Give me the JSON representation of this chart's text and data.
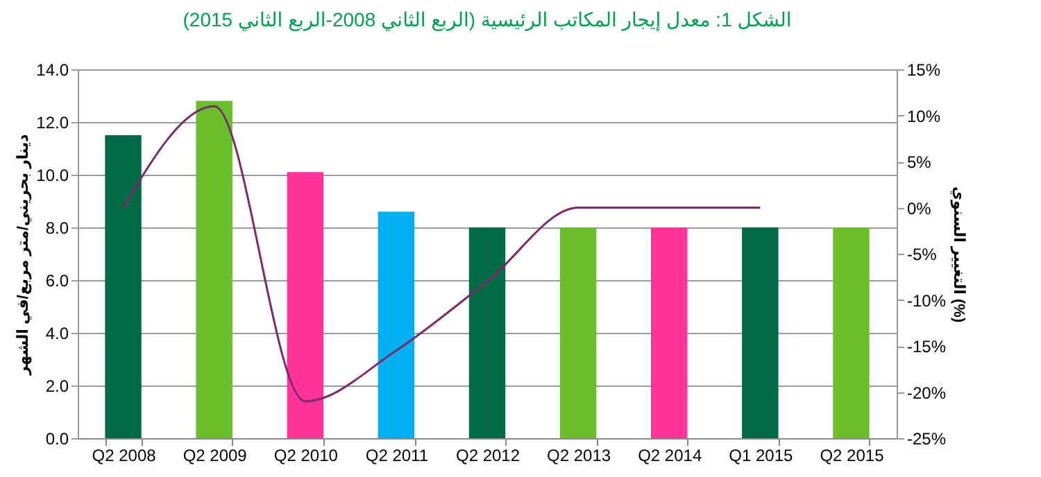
{
  "chart_data": {
    "type": "bar",
    "title": "الشكل 1: معدل إيجار المكاتب الرئيسية (الربع الثاني 2008-الربع الثاني 2015)",
    "ylabel": "دينار بحريني/متر مربع/في الشهر",
    "y2label": "التغيير السنوي (%)",
    "categories": [
      "Q2 2008",
      "Q2 2009",
      "Q2 2010",
      "Q2 2011",
      "Q2 2012",
      "Q2 2013",
      "Q2 2014",
      "Q1 2015",
      "Q2 2015"
    ],
    "series": [
      {
        "values": [
          11.5,
          12.8,
          10.1,
          8.6,
          8.0,
          8.0,
          8.0,
          8.0,
          8.0
        ],
        "colors": [
          "#006a44",
          "#6abf2b",
          "#ff3399",
          "#00b0f0",
          "#006a44",
          "#6abf2b",
          "#ff3399",
          "#006a44",
          "#6abf2b"
        ]
      },
      {
        "type": "line",
        "axis": "y2",
        "color": "#7b2a6e",
        "values": [
          0,
          11,
          -21,
          -15.5,
          -8,
          0,
          0,
          0,
          null
        ]
      }
    ],
    "ylim": [
      0,
      14
    ],
    "yticks": [
      {
        "value": 0,
        "label": "0.0"
      },
      {
        "value": 2,
        "label": "2.0"
      },
      {
        "value": 4,
        "label": "4.0"
      },
      {
        "value": 6,
        "label": "6.0"
      },
      {
        "value": 8,
        "label": "8.0"
      },
      {
        "value": 10,
        "label": "10.0"
      },
      {
        "value": 12,
        "label": "12.0"
      },
      {
        "value": 14,
        "label": "14.0"
      }
    ],
    "y2lim": [
      -25,
      15
    ],
    "y2ticks": [
      {
        "value": -25,
        "label": "-25%"
      },
      {
        "value": -20,
        "label": "-20%"
      },
      {
        "value": -15,
        "label": "-15%"
      },
      {
        "value": -10,
        "label": "-10%"
      },
      {
        "value": -5,
        "label": "-5%"
      },
      {
        "value": 0,
        "label": "0%"
      },
      {
        "value": 5,
        "label": "5%"
      },
      {
        "value": 10,
        "label": "10%"
      },
      {
        "value": 15,
        "label": "15%"
      }
    ],
    "grid": "y",
    "marker": "none",
    "line_style": "solid"
  }
}
